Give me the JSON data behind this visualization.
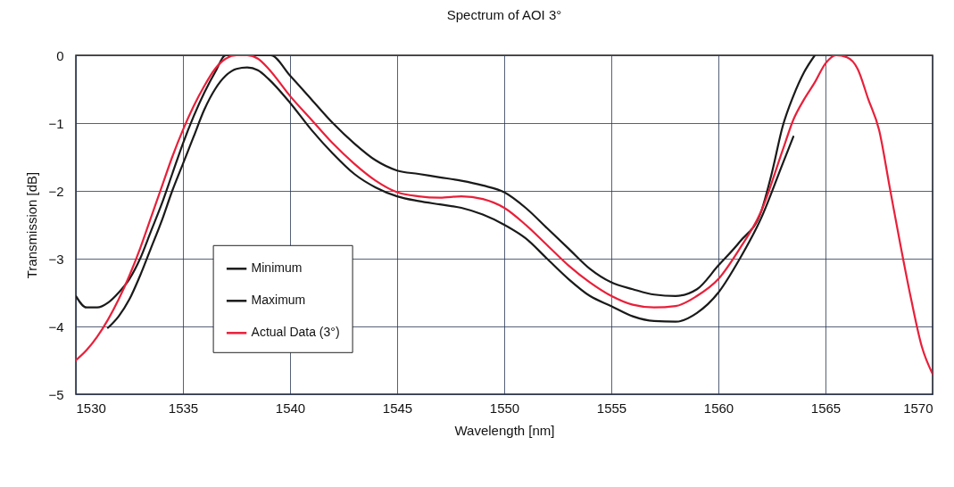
{
  "chart_data": {
    "type": "line",
    "title": "Spectrum of AOI 3°",
    "xlabel": "Wavelength [nm]",
    "ylabel": "Transmission [dB]",
    "xlim": [
      1530,
      1570
    ],
    "xticks": [
      1530,
      1535,
      1540,
      1545,
      1550,
      1555,
      1560,
      1565,
      1570
    ],
    "ylim": [
      -5,
      0
    ],
    "yticks": [
      -5,
      -4,
      -3,
      -2,
      -1,
      0
    ],
    "grid": true,
    "legend": "bottom left",
    "marker": "none",
    "line_style": "solid",
    "series": [
      {
        "name": "Minimum",
        "color": "#1a1a1a",
        "x": [
          1531.5,
          1532,
          1532.5,
          1533,
          1533.5,
          1534,
          1534.5,
          1535,
          1535.5,
          1536,
          1536.5,
          1537,
          1537.5,
          1538,
          1538.5,
          1539,
          1540,
          1541,
          1542,
          1543,
          1544,
          1545,
          1546,
          1547,
          1548,
          1549,
          1550,
          1551,
          1552,
          1553,
          1554,
          1555,
          1556,
          1557,
          1558,
          1559,
          1560,
          1561,
          1562,
          1563,
          1563.5
        ],
        "values": [
          -4.02,
          -3.85,
          -3.6,
          -3.25,
          -2.85,
          -2.45,
          -2.0,
          -1.6,
          -1.2,
          -0.8,
          -0.5,
          -0.3,
          -0.2,
          -0.18,
          -0.22,
          -0.35,
          -0.7,
          -1.1,
          -1.45,
          -1.75,
          -1.95,
          -2.08,
          -2.15,
          -2.2,
          -2.25,
          -2.35,
          -2.5,
          -2.7,
          -3.0,
          -3.3,
          -3.55,
          -3.7,
          -3.85,
          -3.92,
          -3.93,
          -3.8,
          -3.5,
          -3.0,
          -2.4,
          -1.6,
          -1.2
        ]
      },
      {
        "name": "Maximum",
        "color": "#1a1a1a",
        "x": [
          1530,
          1530.5,
          1531,
          1531.5,
          1532,
          1532.5,
          1533,
          1533.5,
          1534,
          1534.5,
          1535,
          1535.5,
          1536,
          1536.5,
          1537,
          1538,
          1539.1,
          1540,
          1541,
          1542,
          1543,
          1544,
          1545,
          1546,
          1547,
          1548,
          1549,
          1550,
          1551,
          1552,
          1553,
          1554,
          1555,
          1556,
          1557,
          1558,
          1559,
          1560,
          1561,
          1562,
          1562.5,
          1563,
          1563.5,
          1564,
          1564.5
        ],
        "values": [
          -3.55,
          -3.72,
          -3.72,
          -3.65,
          -3.5,
          -3.3,
          -3.0,
          -2.6,
          -2.2,
          -1.75,
          -1.3,
          -0.9,
          -0.55,
          -0.25,
          0,
          0,
          0,
          -0.3,
          -0.65,
          -1.0,
          -1.3,
          -1.55,
          -1.7,
          -1.75,
          -1.8,
          -1.85,
          -1.92,
          -2.02,
          -2.25,
          -2.55,
          -2.85,
          -3.15,
          -3.35,
          -3.45,
          -3.53,
          -3.55,
          -3.45,
          -3.1,
          -2.75,
          -2.3,
          -1.73,
          -1.05,
          -0.6,
          -0.25,
          0
        ]
      },
      {
        "name": "Actual Data (3°)",
        "color": "#e8203a",
        "x": [
          1530,
          1530.5,
          1531,
          1531.5,
          1532,
          1532.5,
          1533,
          1533.5,
          1534,
          1534.5,
          1535,
          1535.5,
          1536,
          1536.5,
          1537,
          1537.5,
          1538,
          1538.5,
          1539,
          1540,
          1541,
          1542,
          1543,
          1544,
          1545,
          1546,
          1547,
          1548,
          1549,
          1550,
          1551,
          1552,
          1553,
          1554,
          1555,
          1556,
          1557,
          1558,
          1559,
          1560,
          1561,
          1562,
          1563,
          1563.5,
          1564,
          1564.5,
          1565,
          1565.5,
          1566,
          1566.5,
          1567,
          1567.5,
          1568,
          1568.5,
          1569,
          1569.5,
          1570
        ],
        "values": [
          -4.5,
          -4.35,
          -4.15,
          -3.9,
          -3.6,
          -3.25,
          -2.85,
          -2.4,
          -1.95,
          -1.5,
          -1.1,
          -0.75,
          -0.45,
          -0.2,
          -0.05,
          0,
          0,
          -0.05,
          -0.2,
          -0.6,
          -0.95,
          -1.3,
          -1.6,
          -1.85,
          -2.02,
          -2.08,
          -2.1,
          -2.08,
          -2.12,
          -2.25,
          -2.5,
          -2.8,
          -3.1,
          -3.35,
          -3.55,
          -3.68,
          -3.72,
          -3.7,
          -3.55,
          -3.3,
          -2.85,
          -2.3,
          -1.4,
          -0.95,
          -0.65,
          -0.4,
          -0.12,
          0,
          -0.03,
          -0.2,
          -0.65,
          -1.1,
          -1.95,
          -2.8,
          -3.6,
          -4.3,
          -4.7
        ]
      }
    ]
  }
}
